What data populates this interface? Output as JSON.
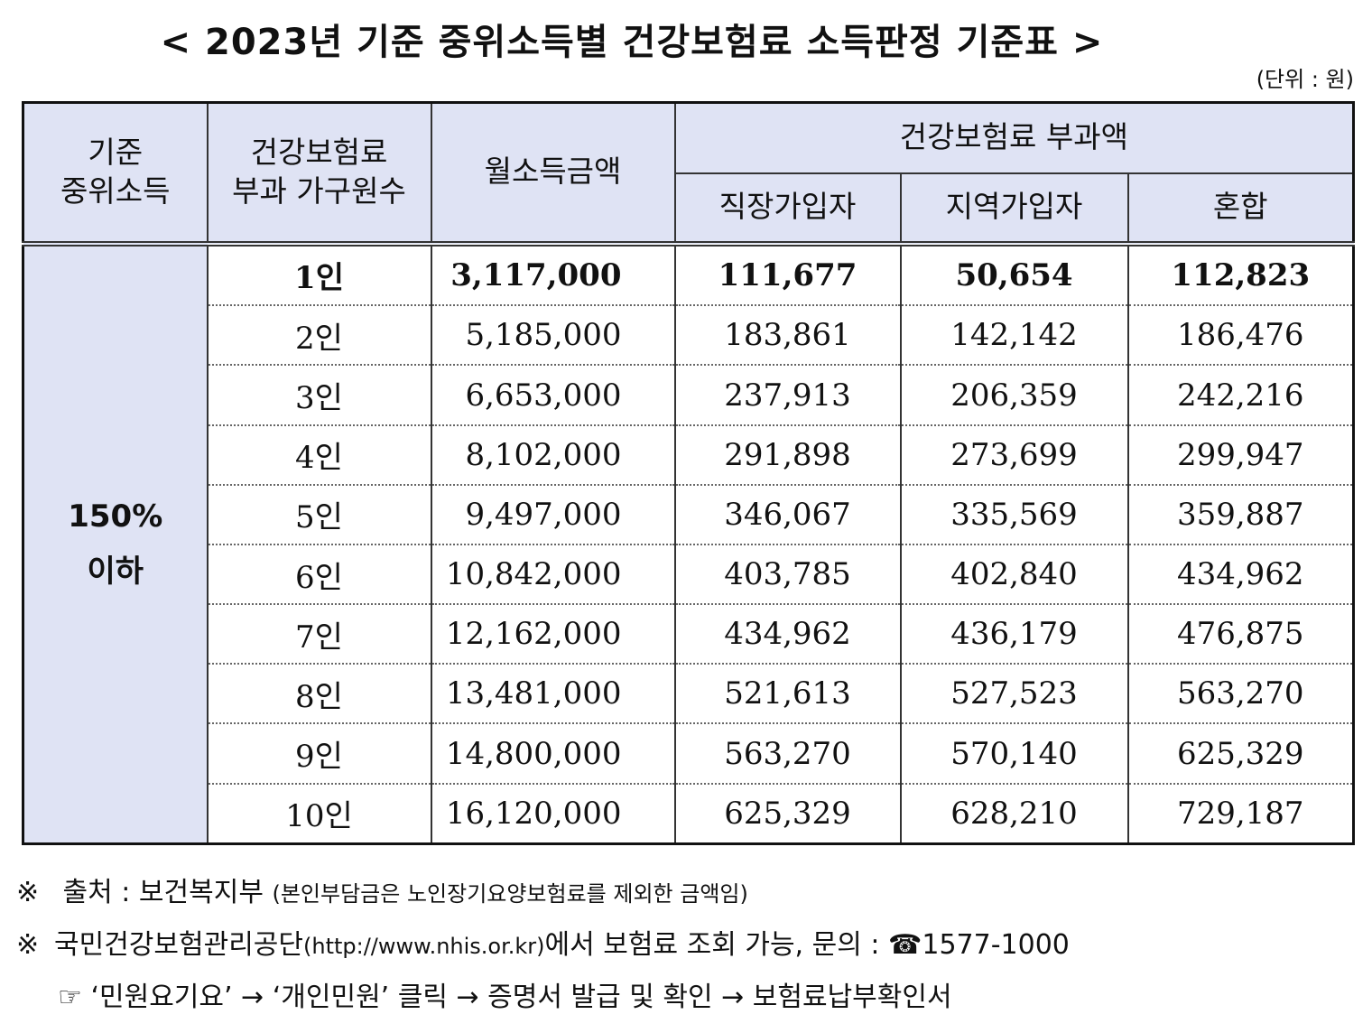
{
  "title": "< 2023년 기준 중위소득별 건강보험료 소득판정 기준표 >",
  "unit": "(단위 : 원)",
  "headers": {
    "category": "기준\n중위소득",
    "household": "건강보험료\n부과 가구원수",
    "income": "월소득금액",
    "premium_group": "건강보험료 부과액",
    "workplace": "직장가입자",
    "regional": "지역가입자",
    "mixed": "혼합"
  },
  "category_value": "150%\n이하",
  "rows": [
    {
      "household": "1인",
      "income": "3,117,000",
      "workplace": "111,677",
      "regional": "50,654",
      "mixed": "112,823"
    },
    {
      "household": "2인",
      "income": "5,185,000",
      "workplace": "183,861",
      "regional": "142,142",
      "mixed": "186,476"
    },
    {
      "household": "3인",
      "income": "6,653,000",
      "workplace": "237,913",
      "regional": "206,359",
      "mixed": "242,216"
    },
    {
      "household": "4인",
      "income": "8,102,000",
      "workplace": "291,898",
      "regional": "273,699",
      "mixed": "299,947"
    },
    {
      "household": "5인",
      "income": "9,497,000",
      "workplace": "346,067",
      "regional": "335,569",
      "mixed": "359,887"
    },
    {
      "household": "6인",
      "income": "10,842,000",
      "workplace": "403,785",
      "regional": "402,840",
      "mixed": "434,962"
    },
    {
      "household": "7인",
      "income": "12,162,000",
      "workplace": "434,962",
      "regional": "436,179",
      "mixed": "476,875"
    },
    {
      "household": "8인",
      "income": "13,481,000",
      "workplace": "521,613",
      "regional": "527,523",
      "mixed": "563,270"
    },
    {
      "household": "9인",
      "income": "14,800,000",
      "workplace": "563,270",
      "regional": "570,140",
      "mixed": "625,329"
    },
    {
      "household": "10인",
      "income": "16,120,000",
      "workplace": "625,329",
      "regional": "628,210",
      "mixed": "729,187"
    }
  ],
  "notes": {
    "mark": "※",
    "source_label": "출처 : 보건복지부",
    "source_detail": "(본인부담금은 노인장기요양보험료를 제외한 금액임)",
    "nhis_name": "국민건강보험관리공단",
    "nhis_url": "(http://www.nhis.or.kr)",
    "nhis_text": "에서 보험료 조회 가능, 문의 : ☎1577-1000",
    "hand_mark": "☞",
    "path": "‘민원요기요’ → ‘개인민원’ 클릭 → 증명서 발급 및 확인 → 보험료납부확인서"
  }
}
